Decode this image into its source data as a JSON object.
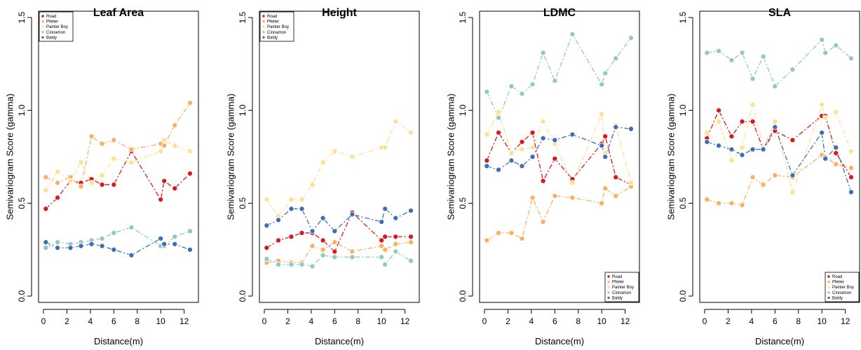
{
  "figure": {
    "ylabel": "Semivariogram Score (gamma)",
    "xlabel": "Distance(m)"
  },
  "legend_entries": [
    {
      "name": "Road",
      "color": "#d7191c"
    },
    {
      "name": "Pfeiler",
      "color": "#fdae61"
    },
    {
      "name": "Painter Boy",
      "color": "#fee090"
    },
    {
      "name": "Cinnamon",
      "color": "#91c8c0"
    },
    {
      "name": "Baldy",
      "color": "#3a6fb7"
    }
  ],
  "chart_data": [
    {
      "type": "line",
      "title": "Leaf Area",
      "xlabel": "Distance(m)",
      "ylabel": "Semivariogram Score (gamma)",
      "xlim": [
        0,
        12.8
      ],
      "ylim": [
        0,
        1.5
      ],
      "xticks": [
        "0",
        "2",
        "4",
        "6",
        "8",
        "10",
        "12"
      ],
      "yticks": [
        "0.0",
        "0.5",
        "1.0",
        "1.5"
      ],
      "legend_position": "top-left",
      "series": [
        {
          "name": "Road",
          "color": "#d7191c",
          "x": [
            0.2,
            1.2,
            2.3,
            3.2,
            4.1,
            5.0,
            6.0,
            7.5,
            10.0,
            10.3,
            11.2,
            12.5
          ],
          "y": [
            0.47,
            0.53,
            0.62,
            0.61,
            0.63,
            0.6,
            0.6,
            0.78,
            0.52,
            0.62,
            0.58,
            0.66
          ]
        },
        {
          "name": "Pfeiler",
          "color": "#fdae61",
          "x": [
            0.2,
            1.2,
            2.3,
            3.2,
            4.1,
            5.0,
            6.0,
            7.5,
            10.0,
            10.3,
            11.2,
            12.5
          ],
          "y": [
            0.64,
            0.61,
            0.64,
            0.59,
            0.86,
            0.82,
            0.84,
            0.79,
            0.82,
            0.81,
            0.92,
            1.04
          ]
        },
        {
          "name": "Painter Boy",
          "color": "#fee090",
          "x": [
            0.2,
            1.2,
            2.3,
            3.2,
            4.1,
            5.0,
            6.0,
            7.5,
            10.0,
            10.3,
            11.2,
            12.5
          ],
          "y": [
            0.57,
            0.67,
            0.62,
            0.72,
            0.61,
            0.65,
            0.74,
            0.72,
            0.78,
            0.84,
            0.81,
            0.78
          ]
        },
        {
          "name": "Cinnamon",
          "color": "#91c8c0",
          "x": [
            0.2,
            1.2,
            2.3,
            3.2,
            4.1,
            5.0,
            6.0,
            7.5,
            10.0,
            10.3,
            11.2,
            12.5
          ],
          "y": [
            0.26,
            0.29,
            0.28,
            0.29,
            0.3,
            0.31,
            0.34,
            0.37,
            0.27,
            0.27,
            0.32,
            0.35
          ]
        },
        {
          "name": "Baldy",
          "color": "#3a6fb7",
          "x": [
            0.2,
            1.2,
            2.3,
            3.2,
            4.1,
            5.0,
            6.0,
            7.5,
            10.0,
            10.3,
            11.2,
            12.5
          ],
          "y": [
            0.29,
            0.26,
            0.26,
            0.27,
            0.28,
            0.27,
            0.25,
            0.22,
            0.31,
            0.28,
            0.28,
            0.25
          ]
        }
      ]
    },
    {
      "type": "line",
      "title": "Height",
      "xlabel": "Distance(m)",
      "ylabel": "Semivariogram Score (gamma)",
      "xlim": [
        0,
        12.8
      ],
      "ylim": [
        0,
        1.5
      ],
      "xticks": [
        "0",
        "2",
        "4",
        "6",
        "8",
        "10",
        "12"
      ],
      "yticks": [
        "0.0",
        "0.5",
        "1.0",
        "1.5"
      ],
      "legend_position": "top-left",
      "series": [
        {
          "name": "Road",
          "color": "#d7191c",
          "x": [
            0.2,
            1.2,
            2.3,
            3.2,
            4.1,
            5.0,
            6.0,
            7.5,
            10.0,
            10.3,
            11.2,
            12.5
          ],
          "y": [
            0.26,
            0.3,
            0.32,
            0.34,
            0.34,
            0.3,
            0.24,
            0.45,
            0.3,
            0.32,
            0.32,
            0.32
          ]
        },
        {
          "name": "Pfeiler",
          "color": "#fdae61",
          "x": [
            0.2,
            1.2,
            2.3,
            3.2,
            4.1,
            5.0,
            6.0,
            7.5,
            10.0,
            10.3,
            11.2,
            12.5
          ],
          "y": [
            0.18,
            0.19,
            0.18,
            0.18,
            0.27,
            0.25,
            0.29,
            0.24,
            0.27,
            0.25,
            0.28,
            0.29
          ]
        },
        {
          "name": "Painter Boy",
          "color": "#fee090",
          "x": [
            0.2,
            1.2,
            2.3,
            3.2,
            4.1,
            5.0,
            6.0,
            7.5,
            10.0,
            10.3,
            11.2,
            12.5
          ],
          "y": [
            0.52,
            0.43,
            0.52,
            0.52,
            0.6,
            0.72,
            0.78,
            0.75,
            0.8,
            0.8,
            0.94,
            0.88
          ]
        },
        {
          "name": "Cinnamon",
          "color": "#91c8c0",
          "x": [
            0.2,
            1.2,
            2.3,
            3.2,
            4.1,
            5.0,
            6.0,
            7.5,
            10.0,
            10.3,
            11.2,
            12.5
          ],
          "y": [
            0.2,
            0.17,
            0.17,
            0.17,
            0.16,
            0.22,
            0.21,
            0.21,
            0.21,
            0.17,
            0.24,
            0.19
          ]
        },
        {
          "name": "Baldy",
          "color": "#3a6fb7",
          "x": [
            0.2,
            1.2,
            2.3,
            3.2,
            4.1,
            5.0,
            6.0,
            7.5,
            10.0,
            10.3,
            11.2,
            12.5
          ],
          "y": [
            0.38,
            0.41,
            0.47,
            0.47,
            0.35,
            0.42,
            0.35,
            0.44,
            0.4,
            0.47,
            0.42,
            0.46
          ]
        }
      ]
    },
    {
      "type": "line",
      "title": "LDMC",
      "xlabel": "Distance(m)",
      "ylabel": "Semivariogram Score (gamma)",
      "xlim": [
        0,
        12.8
      ],
      "ylim": [
        0,
        1.5
      ],
      "xticks": [
        "0",
        "2",
        "4",
        "6",
        "8",
        "10",
        "12"
      ],
      "yticks": [
        "0.0",
        "0.5",
        "1.0",
        "1.5"
      ],
      "legend_position": "bottom-right",
      "series": [
        {
          "name": "Road",
          "color": "#d7191c",
          "x": [
            0.2,
            1.2,
            2.3,
            3.2,
            4.1,
            5.0,
            6.0,
            7.5,
            10.0,
            10.3,
            11.2,
            12.5
          ],
          "y": [
            0.73,
            0.88,
            0.77,
            0.83,
            0.88,
            0.62,
            0.74,
            0.63,
            0.82,
            0.86,
            0.64,
            0.6
          ]
        },
        {
          "name": "Pfeiler",
          "color": "#fdae61",
          "x": [
            0.2,
            1.2,
            2.3,
            3.2,
            4.1,
            5.0,
            6.0,
            7.5,
            10.0,
            10.3,
            11.2,
            12.5
          ],
          "y": [
            0.3,
            0.34,
            0.34,
            0.31,
            0.53,
            0.4,
            0.54,
            0.53,
            0.5,
            0.58,
            0.54,
            0.59
          ]
        },
        {
          "name": "Painter Boy",
          "color": "#fee090",
          "x": [
            0.2,
            1.2,
            2.3,
            3.2,
            4.1,
            5.0,
            6.0,
            7.5,
            10.0,
            10.3,
            11.2,
            12.5
          ],
          "y": [
            0.87,
            0.99,
            0.77,
            0.79,
            0.8,
            0.94,
            0.82,
            0.61,
            0.98,
            0.77,
            0.92,
            0.61
          ]
        },
        {
          "name": "Cinnamon",
          "color": "#91c8c0",
          "x": [
            0.2,
            1.2,
            2.3,
            3.2,
            4.1,
            5.0,
            6.0,
            7.5,
            10.0,
            10.3,
            11.2,
            12.5
          ],
          "y": [
            1.1,
            0.96,
            1.13,
            1.09,
            1.14,
            1.31,
            1.16,
            1.41,
            1.14,
            1.2,
            1.28,
            1.39
          ]
        },
        {
          "name": "Baldy",
          "color": "#3a6fb7",
          "x": [
            0.2,
            1.2,
            2.3,
            3.2,
            4.1,
            5.0,
            6.0,
            7.5,
            10.0,
            10.3,
            11.2,
            12.5
          ],
          "y": [
            0.7,
            0.68,
            0.73,
            0.7,
            0.75,
            0.85,
            0.84,
            0.87,
            0.81,
            0.75,
            0.91,
            0.9
          ]
        }
      ]
    },
    {
      "type": "line",
      "title": "SLA",
      "xlabel": "Distance(m)",
      "ylabel": "Semivariogram Score (gamma)",
      "xlim": [
        0,
        12.8
      ],
      "ylim": [
        0,
        1.5
      ],
      "xticks": [
        "0",
        "2",
        "4",
        "6",
        "8",
        "10",
        "12"
      ],
      "yticks": [
        "0.0",
        "0.5",
        "1.0",
        "1.5"
      ],
      "legend_position": "bottom-right",
      "series": [
        {
          "name": "Road",
          "color": "#d7191c",
          "x": [
            0.2,
            1.2,
            2.3,
            3.2,
            4.1,
            5.0,
            6.0,
            7.5,
            10.0,
            10.3,
            11.2,
            12.5
          ],
          "y": [
            0.85,
            1.0,
            0.86,
            0.94,
            0.94,
            0.79,
            0.89,
            0.84,
            0.97,
            0.97,
            0.77,
            0.64
          ]
        },
        {
          "name": "Pfeiler",
          "color": "#fdae61",
          "x": [
            0.2,
            1.2,
            2.3,
            3.2,
            4.1,
            5.0,
            6.0,
            7.5,
            10.0,
            10.3,
            11.2,
            12.5
          ],
          "y": [
            0.52,
            0.5,
            0.5,
            0.49,
            0.64,
            0.6,
            0.65,
            0.64,
            0.76,
            0.75,
            0.71,
            0.69
          ]
        },
        {
          "name": "Painter Boy",
          "color": "#fee090",
          "x": [
            0.2,
            1.2,
            2.3,
            3.2,
            4.1,
            5.0,
            6.0,
            7.5,
            10.0,
            10.3,
            11.2,
            12.5
          ],
          "y": [
            0.88,
            0.94,
            0.73,
            0.8,
            1.03,
            0.8,
            0.94,
            0.56,
            1.03,
            0.96,
            0.99,
            0.78
          ]
        },
        {
          "name": "Cinnamon",
          "color": "#91c8c0",
          "x": [
            0.2,
            1.2,
            2.3,
            3.2,
            4.1,
            5.0,
            6.0,
            7.5,
            10.0,
            10.3,
            11.2,
            12.5
          ],
          "y": [
            1.31,
            1.32,
            1.27,
            1.31,
            1.17,
            1.29,
            1.13,
            1.22,
            1.38,
            1.31,
            1.35,
            1.28
          ]
        },
        {
          "name": "Baldy",
          "color": "#3a6fb7",
          "x": [
            0.2,
            1.2,
            2.3,
            3.2,
            4.1,
            5.0,
            6.0,
            7.5,
            10.0,
            10.3,
            11.2,
            12.5
          ],
          "y": [
            0.83,
            0.81,
            0.79,
            0.76,
            0.79,
            0.79,
            0.91,
            0.65,
            0.88,
            0.74,
            0.8,
            0.56
          ]
        }
      ]
    }
  ]
}
